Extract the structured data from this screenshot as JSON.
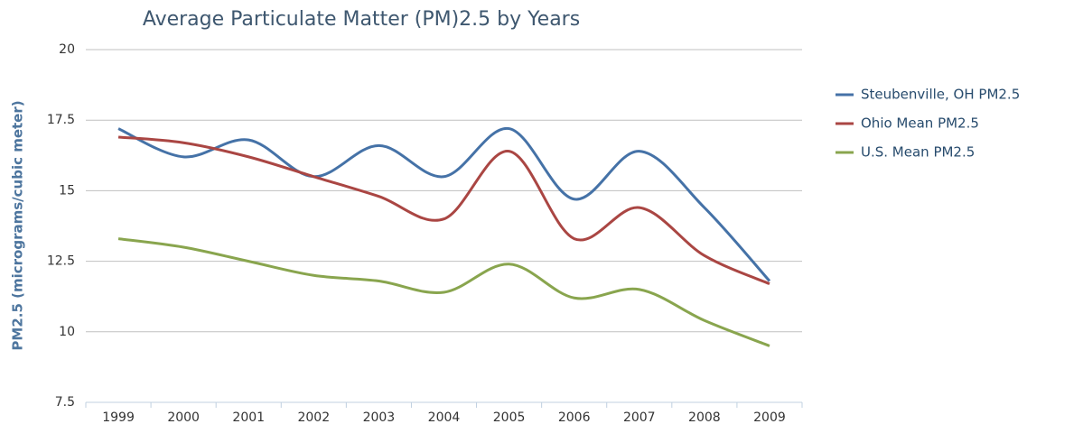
{
  "chart_data": {
    "type": "line",
    "title": "Average Particulate Matter (PM)2.5 by Years",
    "y_label": "PM2.5 (micrograms/cubic meter)",
    "categories": [
      "1999",
      "2000",
      "2001",
      "2002",
      "2003",
      "2004",
      "2005",
      "2006",
      "2007",
      "2008",
      "2009"
    ],
    "series": [
      {
        "name": "Steubenville, OH PM2.5",
        "color": "#4572a7",
        "values": [
          17.2,
          16.2,
          16.8,
          15.5,
          16.6,
          15.5,
          17.2,
          14.7,
          16.4,
          14.4,
          11.8
        ]
      },
      {
        "name": "Ohio Mean PM2.5",
        "color": "#aa4643",
        "values": [
          16.9,
          16.7,
          16.2,
          15.5,
          14.8,
          14.0,
          16.4,
          13.3,
          14.4,
          12.7,
          11.7
        ]
      },
      {
        "name": "U.S. Mean PM2.5",
        "color": "#89a54e",
        "values": [
          13.3,
          13.0,
          12.5,
          12.0,
          11.8,
          11.4,
          12.4,
          11.2,
          11.5,
          10.4,
          9.5
        ]
      }
    ],
    "ylim": [
      7.5,
      20
    ],
    "yticks": [
      7.5,
      10,
      12.5,
      15,
      17.5,
      20
    ],
    "grid": true,
    "smooth": true,
    "legend": "right"
  }
}
